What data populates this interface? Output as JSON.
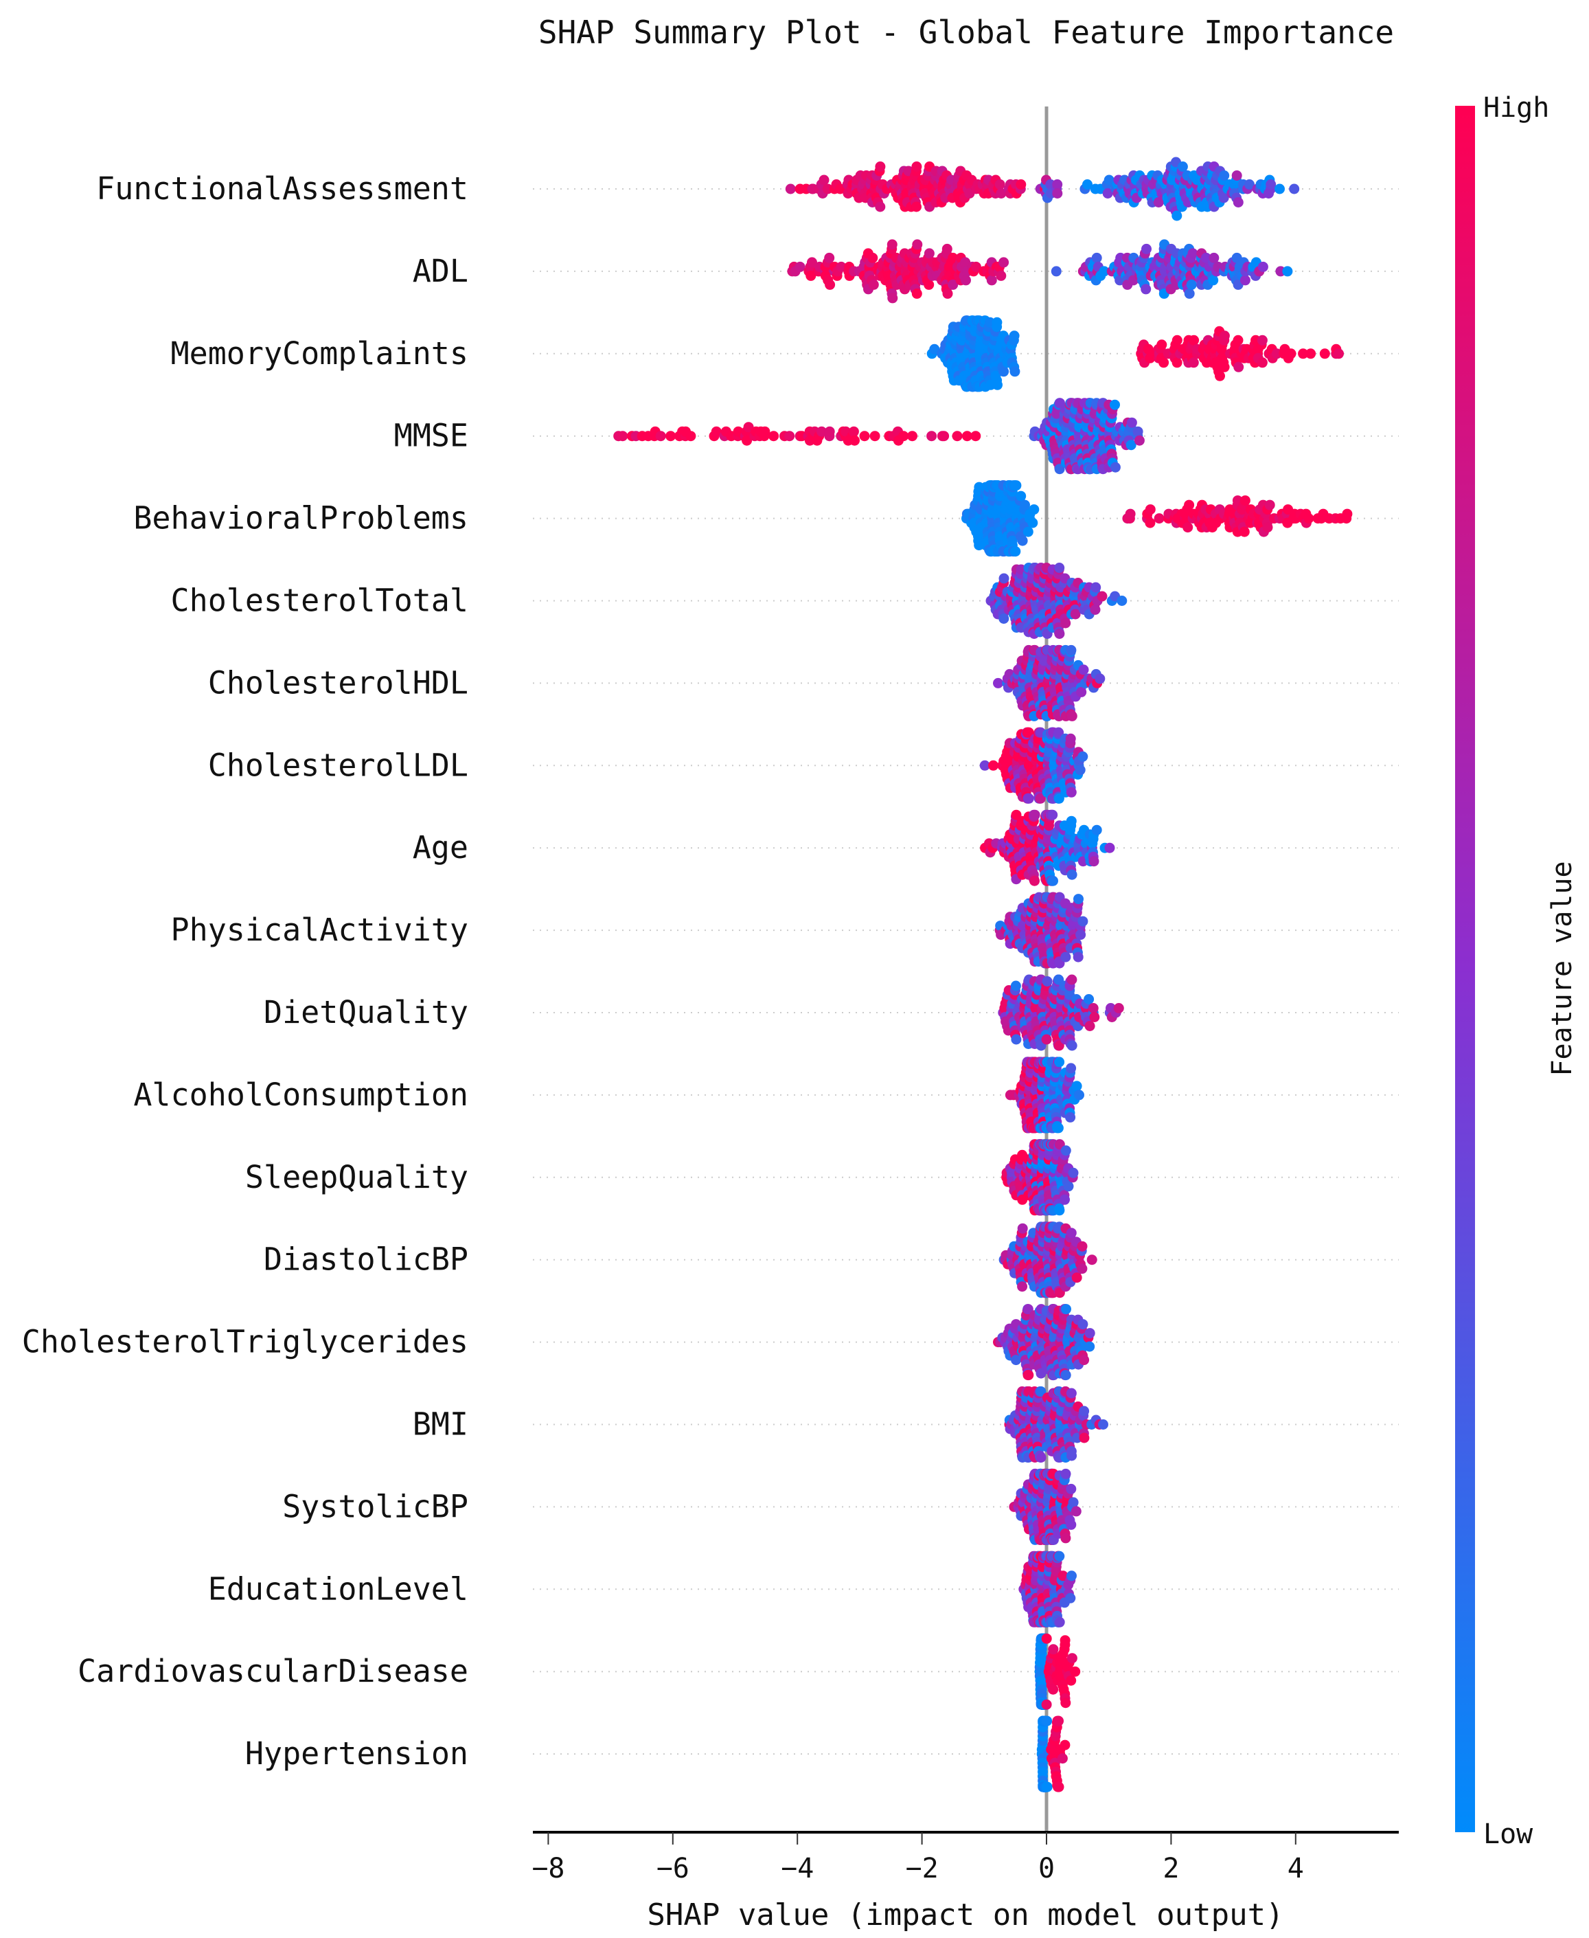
{
  "chart_data": {
    "type": "scatter",
    "subtype": "beeswarm",
    "title": "SHAP Summary Plot - Global Feature Importance",
    "xlabel": "SHAP value (impact on model output)",
    "xlim": [
      -8.3,
      5.6
    ],
    "xticks": [
      -8,
      -6,
      -4,
      -2,
      0,
      2,
      4
    ],
    "grid": false,
    "colorbar": {
      "label": "Feature value",
      "high_label": "High",
      "low_label": "Low",
      "low_color": "#008bfb",
      "mid_color": "#8b2fd0",
      "high_color": "#ff0052"
    },
    "features": [
      {
        "name": "FunctionalAssessment",
        "clusters": [
          {
            "min": -4.5,
            "max": -0.4,
            "center": -2.0,
            "feature_value": 0.9,
            "n": 170
          },
          {
            "min": -0.2,
            "max": 0.6,
            "center": 0.1,
            "feature_value": 0.6,
            "n": 12
          },
          {
            "min": 0.6,
            "max": 4.2,
            "center": 2.2,
            "feature_value": 0.2,
            "n": 170
          }
        ]
      },
      {
        "name": "ADL",
        "clusters": [
          {
            "min": -4.6,
            "max": -0.5,
            "center": -2.1,
            "feature_value": 0.9,
            "n": 170
          },
          {
            "min": -0.2,
            "max": 3.9,
            "center": 1.9,
            "feature_value": 0.3,
            "n": 170
          }
        ]
      },
      {
        "name": "MemoryComplaints",
        "clusters": [
          {
            "min": -1.9,
            "max": -0.3,
            "center": -1.1,
            "feature_value": 0.0,
            "n": 180
          },
          {
            "min": 1.5,
            "max": 4.9,
            "center": 2.6,
            "feature_value": 1.0,
            "n": 110
          }
        ]
      },
      {
        "name": "MMSE",
        "clusters": [
          {
            "min": -7.6,
            "max": -0.8,
            "center": -4.0,
            "feature_value": 1.0,
            "n": 70
          },
          {
            "min": -0.3,
            "max": 1.7,
            "center": 0.6,
            "feature_value": 0.35,
            "n": 220
          }
        ]
      },
      {
        "name": "BehavioralProblems",
        "clusters": [
          {
            "min": -1.4,
            "max": -0.2,
            "center": -0.75,
            "feature_value": 0.0,
            "n": 180
          },
          {
            "min": 1.2,
            "max": 5.1,
            "center": 3.0,
            "feature_value": 1.0,
            "n": 110
          }
        ]
      },
      {
        "name": "CholesterolTotal",
        "clusters": [
          {
            "min": -0.9,
            "max": 1.3,
            "center": 0.0,
            "feature_value": 0.5,
            "n": 200
          }
        ]
      },
      {
        "name": "CholesterolHDL",
        "clusters": [
          {
            "min": -0.8,
            "max": 0.9,
            "center": 0.0,
            "feature_value": 0.5,
            "n": 180
          }
        ]
      },
      {
        "name": "CholesterolLDL",
        "clusters": [
          {
            "min": -1.0,
            "max": 0.0,
            "center": -0.3,
            "feature_value": 0.85,
            "n": 100
          },
          {
            "min": -0.1,
            "max": 0.7,
            "center": 0.15,
            "feature_value": 0.3,
            "n": 90
          }
        ]
      },
      {
        "name": "Age",
        "clusters": [
          {
            "min": -1.1,
            "max": 0.1,
            "center": -0.3,
            "feature_value": 0.85,
            "n": 100
          },
          {
            "min": -0.1,
            "max": 1.1,
            "center": 0.2,
            "feature_value": 0.2,
            "n": 90
          }
        ]
      },
      {
        "name": "PhysicalActivity",
        "clusters": [
          {
            "min": -0.9,
            "max": 0.7,
            "center": 0.0,
            "feature_value": 0.5,
            "n": 180
          }
        ]
      },
      {
        "name": "DietQuality",
        "clusters": [
          {
            "min": -0.7,
            "max": 1.2,
            "center": 0.0,
            "feature_value": 0.5,
            "n": 180
          }
        ]
      },
      {
        "name": "AlcoholConsumption",
        "clusters": [
          {
            "min": -0.6,
            "max": 0.0,
            "center": -0.2,
            "feature_value": 0.85,
            "n": 90
          },
          {
            "min": -0.1,
            "max": 0.6,
            "center": 0.1,
            "feature_value": 0.15,
            "n": 90
          }
        ]
      },
      {
        "name": "SleepQuality",
        "clusters": [
          {
            "min": -1.0,
            "max": 0.1,
            "center": -0.2,
            "feature_value": 0.85,
            "n": 80
          },
          {
            "min": -0.3,
            "max": 0.5,
            "center": 0.05,
            "feature_value": 0.3,
            "n": 100
          }
        ]
      },
      {
        "name": "DiastolicBP",
        "clusters": [
          {
            "min": -0.7,
            "max": 0.8,
            "center": 0.0,
            "feature_value": 0.5,
            "n": 180
          }
        ]
      },
      {
        "name": "CholesterolTriglycerides",
        "clusters": [
          {
            "min": -0.9,
            "max": 0.8,
            "center": 0.0,
            "feature_value": 0.5,
            "n": 180
          }
        ]
      },
      {
        "name": "BMI",
        "clusters": [
          {
            "min": -0.6,
            "max": 1.0,
            "center": 0.0,
            "feature_value": 0.5,
            "n": 180
          }
        ]
      },
      {
        "name": "SystolicBP",
        "clusters": [
          {
            "min": -0.6,
            "max": 0.5,
            "center": 0.0,
            "feature_value": 0.55,
            "n": 170
          }
        ]
      },
      {
        "name": "EducationLevel",
        "clusters": [
          {
            "min": -0.4,
            "max": 0.5,
            "center": 0.0,
            "feature_value": 0.55,
            "n": 150
          }
        ]
      },
      {
        "name": "CardiovascularDisease",
        "clusters": [
          {
            "min": -0.12,
            "max": 0.0,
            "center": -0.05,
            "feature_value": 0.0,
            "n": 180
          },
          {
            "min": 0.0,
            "max": 0.8,
            "center": 0.2,
            "feature_value": 1.0,
            "n": 40
          }
        ]
      },
      {
        "name": "Hypertension",
        "clusters": [
          {
            "min": -0.08,
            "max": 0.02,
            "center": -0.03,
            "feature_value": 0.0,
            "n": 180
          },
          {
            "min": 0.05,
            "max": 0.3,
            "center": 0.15,
            "feature_value": 1.0,
            "n": 30
          }
        ]
      }
    ]
  }
}
